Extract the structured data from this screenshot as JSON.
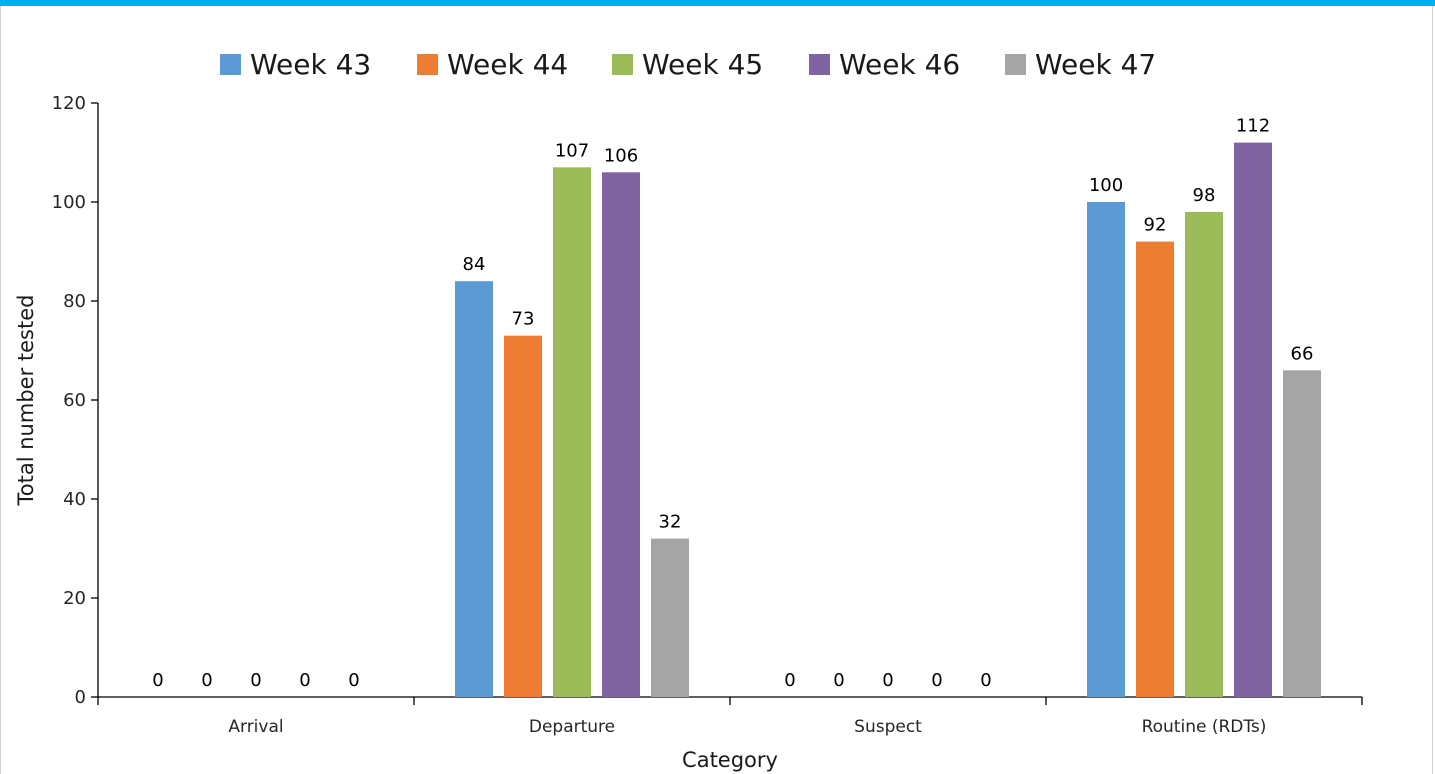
{
  "theme": {
    "topbar_color": "#00aeef"
  },
  "chart_data": {
    "type": "bar",
    "title": "",
    "xlabel": "Category",
    "ylabel": "Total number tested",
    "ylim": [
      0,
      120
    ],
    "yticks": [
      "0",
      "20",
      "40",
      "60",
      "80",
      "100",
      "120"
    ],
    "categories": [
      "Arrival",
      "Departure",
      "Suspect",
      "Routine (RDTs)"
    ],
    "series": [
      {
        "name": "Week 43",
        "color": "#5b9bd5",
        "values": [
          0,
          84,
          0,
          100
        ]
      },
      {
        "name": "Week 44",
        "color": "#ed7d31",
        "values": [
          0,
          73,
          0,
          92
        ]
      },
      {
        "name": "Week 45",
        "color": "#9bbb59",
        "values": [
          0,
          107,
          0,
          98
        ]
      },
      {
        "name": "Week 46",
        "color": "#8064a2",
        "values": [
          0,
          106,
          0,
          112
        ]
      },
      {
        "name": "Week 47",
        "color": "#a5a5a5",
        "values": [
          0,
          32,
          0,
          66
        ]
      }
    ],
    "legend_position": "top",
    "grid": false,
    "data_labels": true
  }
}
